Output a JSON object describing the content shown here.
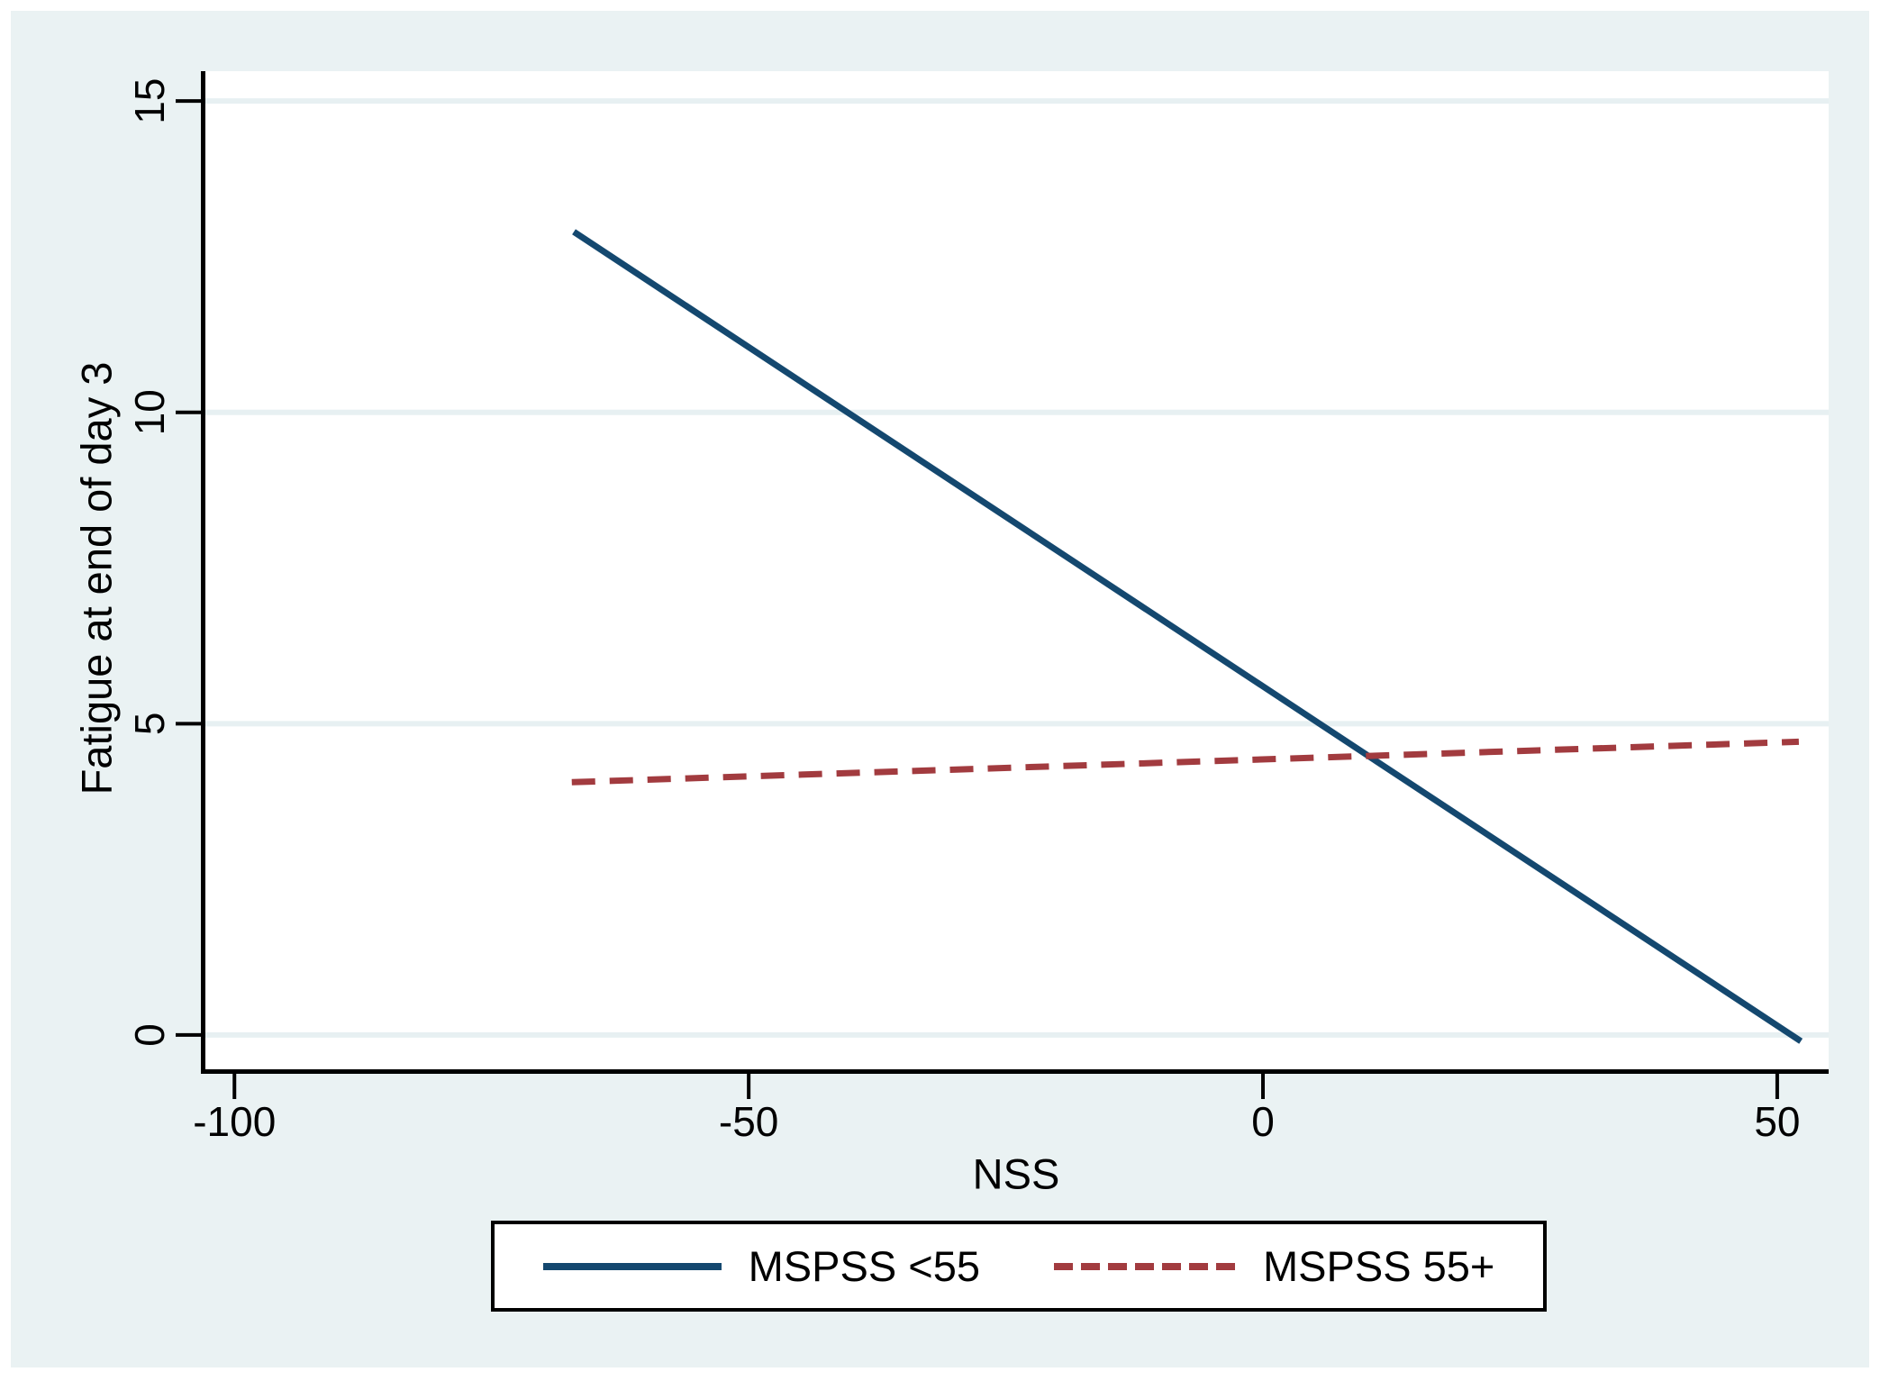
{
  "chart_data": {
    "type": "line",
    "title": "",
    "xlabel": "NSS",
    "ylabel": "Fatigue at end of day 3",
    "xlim": [
      -103,
      55
    ],
    "ylim": [
      -0.58,
      15.48
    ],
    "xticks": [
      -100,
      -50,
      0,
      50
    ],
    "yticks": [
      0,
      5,
      10,
      15
    ],
    "grid": "horizontal-y",
    "legend_position": "bottom-center",
    "colors": {
      "graph_region": "#eaf2f3",
      "plot_background": "#ffffff",
      "gridline": "#e7f0f2",
      "axis": "#000000",
      "navy_line": "#14486f",
      "maroon_line": "#a23b3f"
    },
    "series": [
      {
        "name": "MSPSS <55",
        "line_style": "solid",
        "color": "#14486f",
        "x": [
          -67,
          52.3
        ],
        "y": [
          12.9,
          -0.1
        ]
      },
      {
        "name": "MSPSS 55+",
        "line_style": "dashed",
        "color": "#a23b3f",
        "x": [
          -67.2,
          52.1
        ],
        "y": [
          4.06,
          4.71
        ]
      }
    ]
  }
}
